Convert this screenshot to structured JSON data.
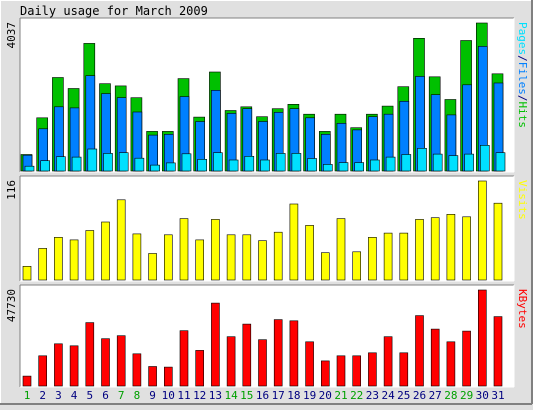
{
  "chart_data": {
    "type": "bar",
    "title": "Daily usage for March 2009",
    "colors": {
      "hits": "#00C000",
      "files": "#0080FF",
      "pages": "#00E0FF",
      "visits": "#FFFF00",
      "kbytes": "#FF0000",
      "weekend_day_label": "#00A000",
      "weekday_label": "#000080",
      "plot_background": "#FFFFFF",
      "outer_background": "#E0E0E0"
    },
    "days": [
      "1",
      "2",
      "3",
      "4",
      "5",
      "6",
      "7",
      "8",
      "9",
      "10",
      "11",
      "12",
      "13",
      "14",
      "15",
      "16",
      "17",
      "18",
      "19",
      "20",
      "21",
      "22",
      "23",
      "24",
      "25",
      "26",
      "27",
      "28",
      "29",
      "30",
      "31"
    ],
    "weekend_days": [
      "1",
      "7",
      "8",
      "14",
      "15",
      "21",
      "22",
      "28",
      "29"
    ],
    "panels": [
      {
        "id": "requests",
        "ymax_label": "4037",
        "ylim": [
          0,
          4037
        ],
        "legend": [
          {
            "text": "Pages",
            "color": "#00E0FF"
          },
          {
            "text": "/",
            "color": "#000080"
          },
          {
            "text": "Files",
            "color": "#0080FF"
          },
          {
            "text": "/",
            "color": "#000080"
          },
          {
            "text": "Hits",
            "color": "#00C000"
          }
        ],
        "series": [
          {
            "name": "Hits",
            "color": "#00C000",
            "values": [
              450,
              1450,
              2550,
              2250,
              3480,
              2380,
              2320,
              2000,
              1080,
              1080,
              2520,
              1470,
              2700,
              1650,
              1750,
              1480,
              1700,
              1820,
              1550,
              1080,
              1550,
              1180,
              1550,
              1770,
              2300,
              3620,
              2570,
              1950,
              3560,
              4037,
              2650
            ]
          },
          {
            "name": "Files",
            "color": "#0080FF",
            "values": [
              430,
              1150,
              1750,
              1720,
              2600,
              2110,
              2000,
              1610,
              980,
              1000,
              2030,
              1350,
              2200,
              1570,
              1700,
              1350,
              1600,
              1700,
              1450,
              1000,
              1300,
              1120,
              1480,
              1550,
              1900,
              2580,
              2080,
              1530,
              2350,
              3400,
              2400
            ]
          },
          {
            "name": "Pages",
            "color": "#00E0FF",
            "values": [
              130,
              280,
              390,
              380,
              600,
              480,
              500,
              350,
              160,
              220,
              470,
              320,
              500,
              300,
              400,
              300,
              480,
              480,
              340,
              180,
              230,
              230,
              300,
              380,
              450,
              620,
              460,
              420,
              460,
              700,
              500
            ]
          }
        ]
      },
      {
        "id": "visits",
        "ymax_label": "116",
        "ylim": [
          0,
          116
        ],
        "legend": [
          {
            "text": "Visits",
            "color": "#FFFF00"
          }
        ],
        "series": [
          {
            "name": "Visits",
            "color": "#FFFF00",
            "values": [
              16,
              37,
              50,
              47,
              58,
              68,
              94,
              54,
              31,
              53,
              72,
              47,
              71,
              53,
              53,
              46,
              56,
              89,
              64,
              32,
              72,
              33,
              50,
              55,
              55,
              71,
              73,
              77,
              74,
              116,
              90
            ]
          }
        ]
      },
      {
        "id": "kbytes",
        "ymax_label": "47730",
        "ylim": [
          0,
          47730
        ],
        "legend": [
          {
            "text": "KBytes",
            "color": "#FF0000"
          }
        ],
        "series": [
          {
            "name": "KBytes",
            "color": "#FF0000",
            "values": [
              4900,
              15000,
              21000,
              20000,
              31500,
              23500,
              25000,
              16000,
              9700,
              9400,
              27500,
              17700,
              41200,
              24500,
              30800,
              23000,
              33000,
              32400,
              22000,
              12500,
              15000,
              15000,
              16500,
              24500,
              16500,
              35000,
              28300,
              22000,
              27300,
              47730,
              34500
            ]
          }
        ]
      }
    ]
  }
}
